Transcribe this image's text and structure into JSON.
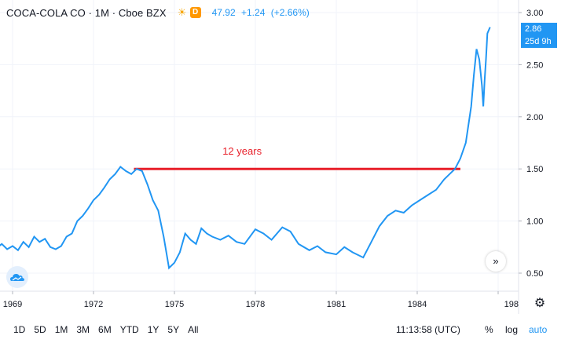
{
  "header": {
    "symbol": "COCA-COLA CO · 1M · Cboe BZX",
    "badge": "D",
    "last": "47.92",
    "change": "+1.24",
    "change_pct": "(+2.66%)",
    "sun_icon": "sun-icon"
  },
  "price_tag": {
    "value": "2.86",
    "countdown": "25d 9h"
  },
  "annotation": {
    "label": "12 years",
    "color": "#e8202a"
  },
  "bottom": {
    "ranges": [
      "1D",
      "5D",
      "1M",
      "3M",
      "6M",
      "YTD",
      "1Y",
      "5Y",
      "All"
    ],
    "clock": "11:13:58 (UTC)",
    "percent": "%",
    "log": "log",
    "auto": "auto"
  },
  "icons": {
    "settings": "gear-icon",
    "scroll": "double-chevron-right-icon",
    "logo": "tradingview-cloud-icon"
  },
  "chart_data": {
    "type": "line",
    "x_tick_labels": [
      "1969",
      "1972",
      "1975",
      "1978",
      "1981",
      "1984",
      "198"
    ],
    "y_tick_labels": [
      "0.50",
      "1.00",
      "1.50",
      "2.00",
      "2.50",
      "3.00"
    ],
    "ylim": [
      0.4,
      3.1
    ],
    "xlim": [
      1968.2,
      1986.4
    ],
    "grid": true,
    "line_color": "#2196f3",
    "series": [
      {
        "x": [
          1968.2,
          1968.4,
          1968.6,
          1968.8,
          1969.0,
          1969.2,
          1969.4,
          1969.6,
          1969.8,
          1970.0,
          1970.2,
          1970.4,
          1970.6,
          1970.8,
          1971.0,
          1971.2,
          1971.4,
          1971.6,
          1971.8,
          1972.0,
          1972.2,
          1972.4,
          1972.6,
          1972.8,
          1973.0,
          1973.2,
          1973.4,
          1973.6,
          1973.8,
          1974.0,
          1974.2,
          1974.4,
          1974.6,
          1974.8,
          1975.0,
          1975.2,
          1975.4,
          1975.6,
          1975.8,
          1976.0,
          1976.2,
          1976.4,
          1976.7,
          1977.0,
          1977.3,
          1977.6,
          1978.0,
          1978.3,
          1978.6,
          1979.0,
          1979.3,
          1979.6,
          1980.0,
          1980.3,
          1980.6,
          1981.0,
          1981.3,
          1981.6,
          1982.0,
          1982.3,
          1982.6,
          1982.9,
          1983.2,
          1983.5,
          1983.8,
          1984.1,
          1984.4,
          1984.7,
          1985.0,
          1985.2,
          1985.4,
          1985.6,
          1985.8,
          1986.0,
          1986.1,
          1986.2,
          1986.3,
          1986.4,
          1986.45,
          1986.5,
          1986.55,
          1986.6,
          1986.7
        ],
        "y": [
          0.76,
          0.74,
          0.78,
          0.73,
          0.76,
          0.72,
          0.8,
          0.75,
          0.85,
          0.8,
          0.83,
          0.75,
          0.73,
          0.76,
          0.85,
          0.88,
          1.0,
          1.05,
          1.12,
          1.2,
          1.25,
          1.32,
          1.4,
          1.45,
          1.52,
          1.48,
          1.45,
          1.5,
          1.48,
          1.35,
          1.2,
          1.1,
          0.85,
          0.55,
          0.6,
          0.7,
          0.88,
          0.82,
          0.78,
          0.93,
          0.88,
          0.85,
          0.82,
          0.86,
          0.8,
          0.78,
          0.92,
          0.88,
          0.82,
          0.94,
          0.9,
          0.78,
          0.72,
          0.76,
          0.7,
          0.68,
          0.75,
          0.7,
          0.65,
          0.8,
          0.95,
          1.05,
          1.1,
          1.08,
          1.15,
          1.2,
          1.25,
          1.3,
          1.4,
          1.45,
          1.5,
          1.6,
          1.75,
          2.1,
          2.4,
          2.65,
          2.55,
          2.3,
          2.1,
          2.35,
          2.55,
          2.8,
          2.86
        ]
      }
    ],
    "annotations": [
      {
        "type": "horizontal_segment",
        "label": "12 years",
        "x": [
          1973.5,
          1985.6
        ],
        "y": 1.5
      }
    ]
  }
}
